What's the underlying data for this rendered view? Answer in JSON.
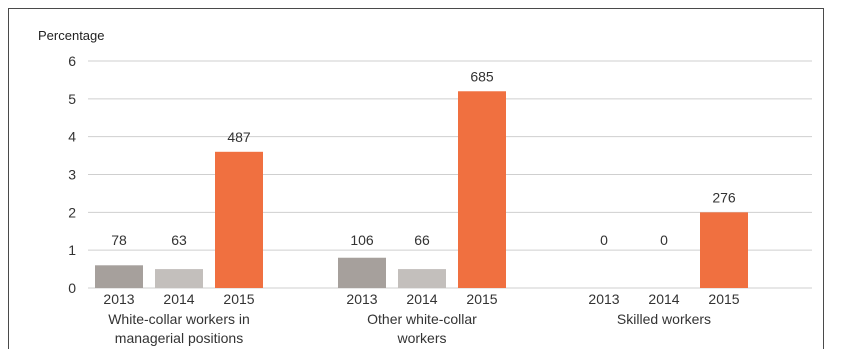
{
  "chart_data": {
    "type": "bar",
    "ylabel": "Percentage",
    "ylim": [
      0,
      6
    ],
    "yticks": [
      0,
      1,
      2,
      3,
      4,
      5,
      6
    ],
    "grid": true,
    "groups": [
      {
        "name_lines": [
          "White-collar workers in",
          "managerial positions"
        ],
        "years": [
          "2013",
          "2014",
          "2015"
        ],
        "values": [
          0.6,
          0.5,
          3.6
        ],
        "labels": [
          "78",
          "63",
          "487"
        ]
      },
      {
        "name_lines": [
          "Other white-collar",
          "workers"
        ],
        "years": [
          "2013",
          "2014",
          "2015"
        ],
        "values": [
          0.8,
          0.5,
          5.2
        ],
        "labels": [
          "106",
          "66",
          "685"
        ]
      },
      {
        "name_lines": [
          "Skilled workers"
        ],
        "years": [
          "2013",
          "2014",
          "2015"
        ],
        "values": [
          0,
          0,
          2.0
        ],
        "labels": [
          "0",
          "0",
          "276"
        ]
      }
    ],
    "colors": {
      "2013": "#a6a09c",
      "2014": "#c3bfbc",
      "2015": "#f07040",
      "grid": "#cfcfcf"
    }
  }
}
